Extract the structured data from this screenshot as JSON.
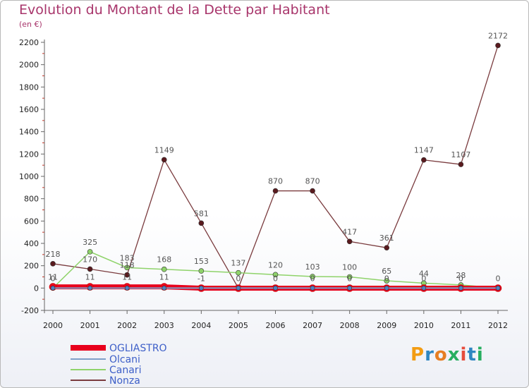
{
  "title": "Evolution du Montant de la Dette par Habitant",
  "subtitle": "(en €)",
  "logo": {
    "text": "Proxiti",
    "colors": [
      "#f39c12",
      "#2e86c1",
      "#e67e22",
      "#27ae60",
      "#e74c3c",
      "#2e86c1",
      "#27ae60"
    ]
  },
  "chart_data": {
    "type": "line",
    "x": [
      "2000",
      "2001",
      "2002",
      "2003",
      "2004",
      "2005",
      "2006",
      "2007",
      "2008",
      "2009",
      "2010",
      "2011",
      "2012"
    ],
    "ylim": [
      -200,
      2200
    ],
    "yticks": [
      "-200",
      "0",
      "200",
      "400",
      "600",
      "800",
      "1000",
      "1200",
      "1400",
      "1600",
      "1800",
      "2000",
      "2200"
    ],
    "grid": false,
    "legend_position": "bottom-left",
    "series": [
      {
        "name": "OGLIASTRO",
        "color": "#e8001c",
        "values": [
          11,
          11,
          11,
          11,
          -1,
          -1,
          -1,
          -1,
          -1,
          -1,
          -1,
          -1,
          -1
        ],
        "labels": [
          "11",
          "11",
          "11",
          "11",
          "-1",
          "",
          "",
          "",
          "",
          "",
          "",
          "",
          ""
        ]
      },
      {
        "name": "Olcani",
        "color": "#7f9fc8",
        "values": [
          0,
          0,
          0,
          0,
          0,
          0,
          0,
          0,
          0,
          0,
          0,
          0,
          0
        ],
        "labels": [
          "0",
          "",
          "",
          "",
          "",
          "0",
          "0",
          "0",
          "0",
          "0",
          "0",
          "0",
          "0"
        ]
      },
      {
        "name": "Canari",
        "color": "#8fd36a",
        "values": [
          0,
          325,
          183,
          168,
          153,
          137,
          120,
          103,
          100,
          65,
          44,
          28,
          0
        ],
        "labels": [
          "",
          "325",
          "183",
          "168",
          "153",
          "137",
          "120",
          "103",
          "100",
          "65",
          "44",
          "28",
          ""
        ]
      },
      {
        "name": "Nonza",
        "color": "#7a3b3e",
        "values": [
          218,
          170,
          118,
          1149,
          581,
          0,
          870,
          870,
          417,
          361,
          1147,
          1107,
          2172
        ],
        "labels": [
          "218",
          "170",
          "118",
          "1149",
          "581",
          "",
          "870",
          "870",
          "417",
          "361",
          "1147",
          "1107",
          "2172"
        ]
      }
    ]
  }
}
